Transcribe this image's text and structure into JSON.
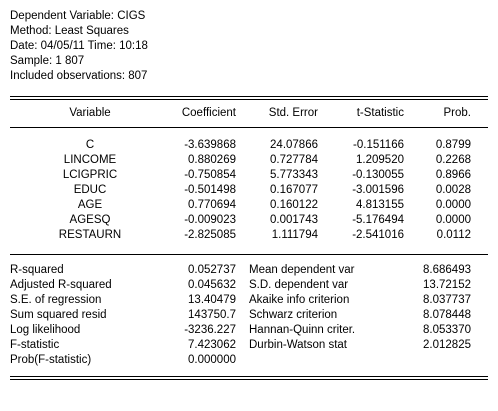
{
  "header": {
    "dependent": "Dependent Variable: CIGS",
    "method": "Method: Least Squares",
    "date": "Date: 04/05/11   Time: 10:18",
    "sample": "Sample: 1 807",
    "included": "Included observations: 807"
  },
  "columns": [
    "Variable",
    "Coefficient",
    "Std. Error",
    "t-Statistic",
    "Prob."
  ],
  "rows": [
    {
      "variable": "C",
      "coefficient": "-3.639868",
      "std_error": "24.07866",
      "t_statistic": "-0.151166",
      "prob": "0.8799"
    },
    {
      "variable": "LINCOME",
      "coefficient": "0.880269",
      "std_error": "0.727784",
      "t_statistic": "1.209520",
      "prob": "0.2268"
    },
    {
      "variable": "LCIGPRIC",
      "coefficient": "-0.750854",
      "std_error": "5.773343",
      "t_statistic": "-0.130055",
      "prob": "0.8966"
    },
    {
      "variable": "EDUC",
      "coefficient": "-0.501498",
      "std_error": "0.167077",
      "t_statistic": "-3.001596",
      "prob": "0.0028"
    },
    {
      "variable": "AGE",
      "coefficient": "0.770694",
      "std_error": "0.160122",
      "t_statistic": "4.813155",
      "prob": "0.0000"
    },
    {
      "variable": "AGESQ",
      "coefficient": "-0.009023",
      "std_error": "0.001743",
      "t_statistic": "-5.176494",
      "prob": "0.0000"
    },
    {
      "variable": "RESTAURN",
      "coefficient": "-2.825085",
      "std_error": "1.111794",
      "t_statistic": "-2.541016",
      "prob": "0.0112"
    }
  ],
  "stats": [
    {
      "label": "R-squared",
      "value": "0.052737",
      "label2": "Mean dependent var",
      "value2": "8.686493"
    },
    {
      "label": "Adjusted R-squared",
      "value": "0.045632",
      "label2": "S.D. dependent var",
      "value2": "13.72152"
    },
    {
      "label": "S.E. of regression",
      "value": "13.40479",
      "label2": "Akaike info criterion",
      "value2": "8.037737"
    },
    {
      "label": "Sum squared resid",
      "value": "143750.7",
      "label2": "Schwarz criterion",
      "value2": "8.078448"
    },
    {
      "label": "Log likelihood",
      "value": "-3236.227",
      "label2": "Hannan-Quinn criter.",
      "value2": "8.053370"
    },
    {
      "label": "F-statistic",
      "value": "7.423062",
      "label2": "Durbin-Watson stat",
      "value2": "2.012825"
    },
    {
      "label": "Prob(F-statistic)",
      "value": "0.000000",
      "label2": "",
      "value2": ""
    }
  ]
}
